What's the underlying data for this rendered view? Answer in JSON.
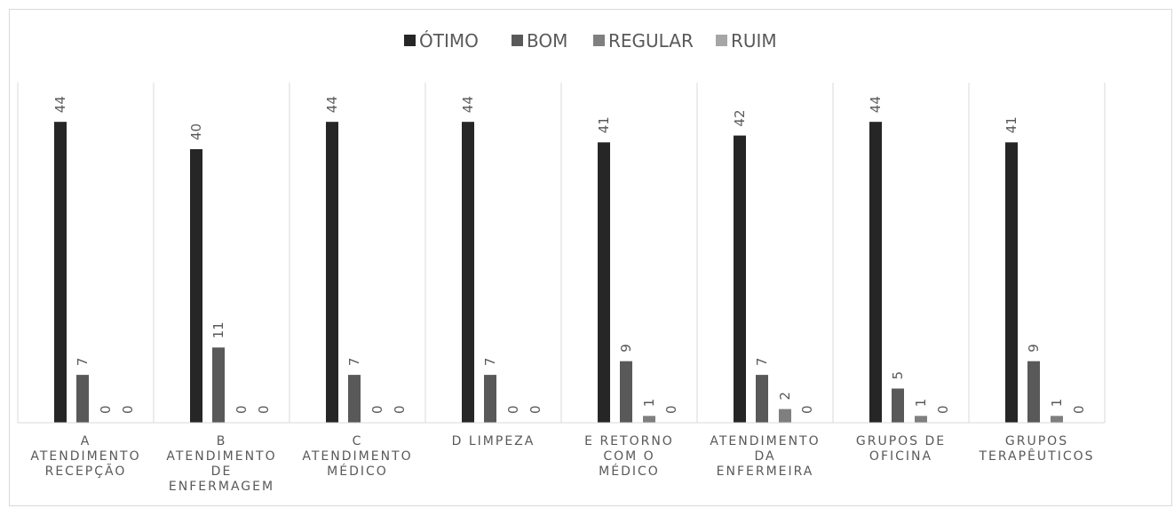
{
  "chart_data": {
    "type": "bar",
    "title": "",
    "xlabel": "",
    "ylabel": "",
    "ylim": [
      0,
      45
    ],
    "legend_position": "top",
    "grid": "vertical separators between categories",
    "categories": [
      [
        "A",
        "ATENDIMENTO",
        "RECEPÇÃO"
      ],
      [
        "B",
        "ATENDIMENTO",
        "DE",
        "ENFERMAGEM"
      ],
      [
        "C",
        "ATENDIMENTO",
        "MÉDICO"
      ],
      [
        "D LIMPEZA"
      ],
      [
        "E RETORNO",
        "COM O",
        "MÉDICO"
      ],
      [
        "ATENDIMENTO",
        "DA",
        "ENFERMEIRA"
      ],
      [
        "GRUPOS DE",
        "OFICINA"
      ],
      [
        "GRUPOS",
        "TERAPÊUTICOS"
      ]
    ],
    "series": [
      {
        "name": "ÓTIMO",
        "color": "#262626",
        "values": [
          44,
          40,
          44,
          44,
          41,
          42,
          44,
          41
        ]
      },
      {
        "name": "BOM",
        "color": "#595959",
        "values": [
          7,
          11,
          7,
          7,
          9,
          7,
          5,
          9
        ]
      },
      {
        "name": "REGULAR",
        "color": "#7f7f7f",
        "values": [
          0,
          0,
          0,
          0,
          1,
          2,
          1,
          1
        ]
      },
      {
        "name": "RUIM",
        "color": "#a6a6a6",
        "values": [
          0,
          0,
          0,
          0,
          0,
          0,
          0,
          0
        ]
      }
    ],
    "separator_color": "#d9d9d9",
    "text_color": "#595959"
  }
}
